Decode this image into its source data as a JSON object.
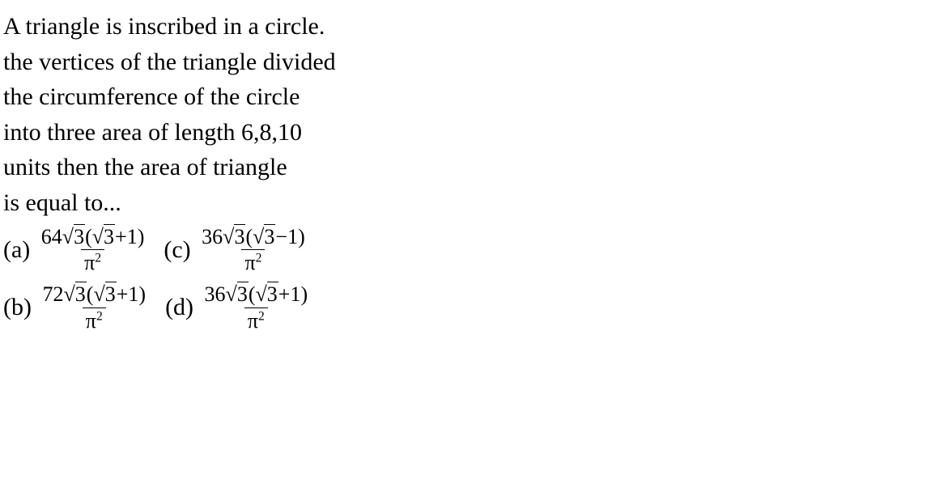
{
  "problem": {
    "lines": [
      "A triangle is inscribed in a circle.",
      "the vertices of the triangle divided",
      "the circumference of the circle",
      "into three area of length 6,8,10",
      "units then the area of triangle",
      "is equal to..."
    ]
  },
  "options_row1": {
    "a": {
      "label": "(a)",
      "coef": "64",
      "sign": "+"
    },
    "c": {
      "label": "(c)",
      "coef": "36",
      "sign": "−"
    }
  },
  "options_row2": {
    "b": {
      "label": "(b)",
      "coef": "72",
      "sign": "+"
    },
    "d": {
      "label": "(d)",
      "coef": "36",
      "sign": "+"
    }
  },
  "shared": {
    "sqrt3": "3",
    "pi": "π",
    "sq": "2",
    "one": "1"
  },
  "style": {
    "text_color": "#000000",
    "background": "#ffffff",
    "body_fontsize": 30,
    "frac_fontsize": 26,
    "font_family": "Georgia, Times New Roman, serif"
  }
}
